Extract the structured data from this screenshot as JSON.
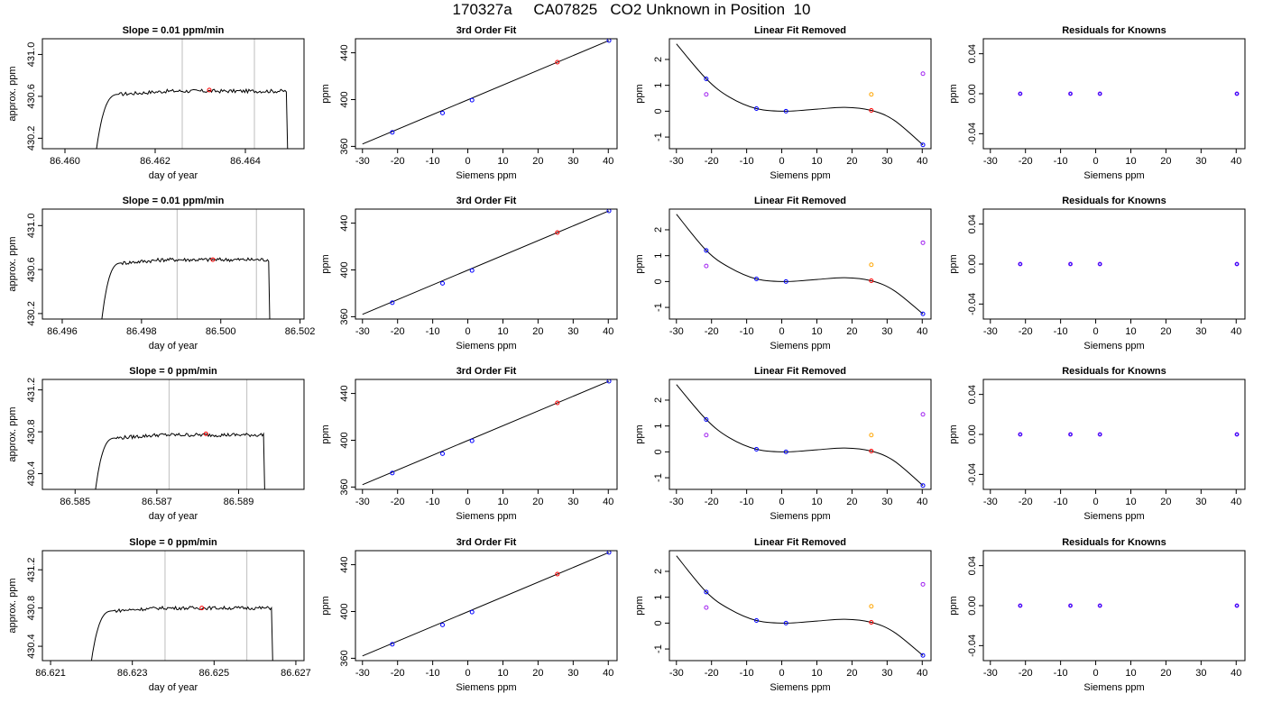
{
  "header": {
    "title": "170327a     CA07825   CO2 Unknown in Position  10"
  },
  "colors": {
    "frame": "#000000",
    "trace": "#000000",
    "window_line": "#c8c8c8",
    "unknown": "#ff0000",
    "known": "#0000ff",
    "reference_orange": "#ffa500",
    "reference_purple": "#a020f0"
  },
  "chart_data": [
    {
      "type": "line",
      "row": 0,
      "title": "Slope =  0.01  ppm/min",
      "xlabel": "day of year",
      "ylabel": "approx. ppm",
      "xlim": [
        86.4595,
        86.4653
      ],
      "ylim": [
        430.1,
        431.15
      ],
      "xticks": [
        86.46,
        86.462,
        86.464
      ],
      "xtick_labels": [
        "86.460",
        "86.462",
        "86.464"
      ],
      "yticks": [
        430.2,
        430.6,
        431.0
      ],
      "ytick_labels": [
        "430.2",
        "430.6",
        "431.0"
      ],
      "window": [
        86.4626,
        86.4642
      ],
      "mean_point": [
        86.4632,
        430.66
      ],
      "trace_start": 86.4607,
      "trace_end": 86.465,
      "plateau": 430.65,
      "floor": 430.1
    },
    {
      "type": "line",
      "row": 1,
      "title": "Slope =  0.01  ppm/min",
      "xlabel": "day of year",
      "ylabel": "approx. ppm",
      "xlim": [
        86.4955,
        86.5021
      ],
      "ylim": [
        430.15,
        431.15
      ],
      "xticks": [
        86.496,
        86.498,
        86.5,
        86.502
      ],
      "xtick_labels": [
        "86.496",
        "86.498",
        "86.500",
        "86.502"
      ],
      "yticks": [
        430.2,
        430.6,
        431.0
      ],
      "ytick_labels": [
        "430.2",
        "430.6",
        "431.0"
      ],
      "window": [
        86.4989,
        86.5009
      ],
      "mean_point": [
        86.4998,
        430.69
      ],
      "trace_start": 86.497,
      "trace_end": 86.5013,
      "plateau": 430.69,
      "floor": 430.15
    },
    {
      "type": "line",
      "row": 2,
      "title": "Slope =  0  ppm/min",
      "xlabel": "day of year",
      "ylabel": "approx. ppm",
      "xlim": [
        86.5842,
        86.5906
      ],
      "ylim": [
        430.25,
        431.3
      ],
      "xticks": [
        86.585,
        86.587,
        86.589
      ],
      "xtick_labels": [
        "86.585",
        "86.587",
        "86.589"
      ],
      "yticks": [
        430.4,
        430.8,
        431.2
      ],
      "ytick_labels": [
        "430.4",
        "430.8",
        "431.2"
      ],
      "window": [
        86.5873,
        86.5892
      ],
      "mean_point": [
        86.5882,
        430.78
      ],
      "trace_start": 86.5855,
      "trace_end": 86.5897,
      "plateau": 430.77,
      "floor": 430.25
    },
    {
      "type": "line",
      "row": 3,
      "title": "Slope =  0  ppm/min",
      "xlabel": "day of year",
      "ylabel": "approx. ppm",
      "xlim": [
        86.6208,
        86.6272
      ],
      "ylim": [
        430.25,
        431.4
      ],
      "xticks": [
        86.621,
        86.623,
        86.625,
        86.627
      ],
      "xtick_labels": [
        "86.621",
        "86.623",
        "86.625",
        "86.627"
      ],
      "yticks": [
        430.4,
        430.8,
        431.2
      ],
      "ytick_labels": [
        "430.4",
        "430.8",
        "431.2"
      ],
      "window": [
        86.6238,
        86.6258
      ],
      "mean_point": [
        86.6247,
        430.8
      ],
      "trace_start": 86.622,
      "trace_end": 86.6265,
      "plateau": 430.8,
      "floor": 430.25
    },
    {
      "type": "scatter",
      "row": 0,
      "title": "3rd Order Fit",
      "xlabel": "Siemens ppm",
      "ylabel": "ppm",
      "xlim": [
        -32,
        42.5
      ],
      "ylim": [
        358,
        452
      ],
      "xticks": [
        -30,
        -20,
        -10,
        0,
        10,
        20,
        30,
        40
      ],
      "yticks": [
        360,
        400,
        440
      ],
      "points": [
        [
          -21.5,
          372,
          "known"
        ],
        [
          -7.2,
          388.5,
          "known"
        ],
        [
          1.2,
          399.5,
          "known"
        ],
        [
          25.5,
          432,
          "unknown"
        ],
        [
          40.2,
          450.5,
          "known"
        ]
      ],
      "fit_line": [
        [
          -30,
          362
        ],
        [
          40.2,
          450.5
        ]
      ]
    },
    {
      "type": "scatter",
      "row": 1,
      "title": "3rd Order Fit",
      "xlabel": "Siemens ppm",
      "ylabel": "ppm",
      "xlim": [
        -32,
        42.5
      ],
      "ylim": [
        358,
        452
      ],
      "xticks": [
        -30,
        -20,
        -10,
        0,
        10,
        20,
        30,
        40
      ],
      "yticks": [
        360,
        400,
        440
      ],
      "points": [
        [
          -21.5,
          372,
          "known"
        ],
        [
          -7.2,
          388.5,
          "known"
        ],
        [
          1.2,
          399.5,
          "known"
        ],
        [
          25.5,
          432,
          "unknown"
        ],
        [
          40.2,
          450.5,
          "known"
        ]
      ],
      "fit_line": [
        [
          -30,
          362
        ],
        [
          40.2,
          450.5
        ]
      ]
    },
    {
      "type": "scatter",
      "row": 2,
      "title": "3rd Order Fit",
      "xlabel": "Siemens ppm",
      "ylabel": "ppm",
      "xlim": [
        -32,
        42.5
      ],
      "ylim": [
        358,
        452
      ],
      "xticks": [
        -30,
        -20,
        -10,
        0,
        10,
        20,
        30,
        40
      ],
      "yticks": [
        360,
        400,
        440
      ],
      "points": [
        [
          -21.5,
          372,
          "known"
        ],
        [
          -7.2,
          388.5,
          "known"
        ],
        [
          1.2,
          399.5,
          "known"
        ],
        [
          25.5,
          432,
          "unknown"
        ],
        [
          40.2,
          450.5,
          "known"
        ]
      ],
      "fit_line": [
        [
          -30,
          362
        ],
        [
          40.2,
          450.5
        ]
      ]
    },
    {
      "type": "scatter",
      "row": 3,
      "title": "3rd Order Fit",
      "xlabel": "Siemens ppm",
      "ylabel": "ppm",
      "xlim": [
        -32,
        42.5
      ],
      "ylim": [
        358,
        452
      ],
      "xticks": [
        -30,
        -20,
        -10,
        0,
        10,
        20,
        30,
        40
      ],
      "yticks": [
        360,
        400,
        440
      ],
      "points": [
        [
          -21.5,
          372,
          "known"
        ],
        [
          -7.2,
          388.5,
          "known"
        ],
        [
          1.2,
          399.5,
          "known"
        ],
        [
          25.5,
          432,
          "unknown"
        ],
        [
          40.2,
          450.5,
          "known"
        ]
      ],
      "fit_line": [
        [
          -30,
          362
        ],
        [
          40.2,
          450.5
        ]
      ]
    },
    {
      "type": "scatter",
      "row": 0,
      "title": "Linear Fit Removed",
      "xlabel": "Siemens ppm",
      "ylabel": "ppm",
      "xlim": [
        -32,
        42.5
      ],
      "ylim": [
        -1.45,
        2.8
      ],
      "xticks": [
        -30,
        -20,
        -10,
        0,
        10,
        20,
        30,
        40
      ],
      "yticks": [
        -1,
        0,
        1,
        2
      ],
      "curve_points": [
        [
          -30,
          2.6
        ],
        [
          -21.5,
          1.25
        ],
        [
          -15,
          0.55
        ],
        [
          -7.2,
          0.1
        ],
        [
          1.2,
          0.0
        ],
        [
          10,
          0.08
        ],
        [
          18,
          0.15
        ],
        [
          25.5,
          0.03
        ],
        [
          32,
          -0.35
        ],
        [
          40.2,
          -1.3
        ]
      ],
      "points": [
        [
          -21.5,
          1.25,
          "known"
        ],
        [
          -7.2,
          0.1,
          "known"
        ],
        [
          1.2,
          0.0,
          "known"
        ],
        [
          25.5,
          0.03,
          "unknown"
        ],
        [
          40.2,
          -1.3,
          "known"
        ],
        [
          -21.5,
          0.65,
          "reference_purple"
        ],
        [
          25.5,
          0.65,
          "reference_orange"
        ],
        [
          40.2,
          1.45,
          "reference_purple"
        ]
      ]
    },
    {
      "type": "scatter",
      "row": 1,
      "title": "Linear Fit Removed",
      "xlabel": "Siemens ppm",
      "ylabel": "ppm",
      "xlim": [
        -32,
        42.5
      ],
      "ylim": [
        -1.45,
        2.8
      ],
      "xticks": [
        -30,
        -20,
        -10,
        0,
        10,
        20,
        30,
        40
      ],
      "yticks": [
        -1,
        0,
        1,
        2
      ],
      "curve_points": [
        [
          -30,
          2.6
        ],
        [
          -21.5,
          1.2
        ],
        [
          -15,
          0.55
        ],
        [
          -7.2,
          0.1
        ],
        [
          1.2,
          0.0
        ],
        [
          10,
          0.08
        ],
        [
          18,
          0.15
        ],
        [
          25.5,
          0.03
        ],
        [
          32,
          -0.35
        ],
        [
          40.2,
          -1.25
        ]
      ],
      "points": [
        [
          -21.5,
          1.2,
          "known"
        ],
        [
          -7.2,
          0.1,
          "known"
        ],
        [
          1.2,
          0.0,
          "known"
        ],
        [
          25.5,
          0.03,
          "unknown"
        ],
        [
          40.2,
          -1.25,
          "known"
        ],
        [
          -21.5,
          0.6,
          "reference_purple"
        ],
        [
          25.5,
          0.65,
          "reference_orange"
        ],
        [
          40.2,
          1.5,
          "reference_purple"
        ]
      ]
    },
    {
      "type": "scatter",
      "row": 2,
      "title": "Linear Fit Removed",
      "xlabel": "Siemens ppm",
      "ylabel": "ppm",
      "xlim": [
        -32,
        42.5
      ],
      "ylim": [
        -1.45,
        2.8
      ],
      "xticks": [
        -30,
        -20,
        -10,
        0,
        10,
        20,
        30,
        40
      ],
      "yticks": [
        -1,
        0,
        1,
        2
      ],
      "curve_points": [
        [
          -30,
          2.6
        ],
        [
          -21.5,
          1.25
        ],
        [
          -15,
          0.55
        ],
        [
          -7.2,
          0.1
        ],
        [
          1.2,
          0.0
        ],
        [
          10,
          0.08
        ],
        [
          18,
          0.15
        ],
        [
          25.5,
          0.03
        ],
        [
          32,
          -0.35
        ],
        [
          40.2,
          -1.3
        ]
      ],
      "points": [
        [
          -21.5,
          1.25,
          "known"
        ],
        [
          -7.2,
          0.1,
          "known"
        ],
        [
          1.2,
          0.0,
          "known"
        ],
        [
          25.5,
          0.03,
          "unknown"
        ],
        [
          40.2,
          -1.3,
          "known"
        ],
        [
          -21.5,
          0.65,
          "reference_purple"
        ],
        [
          25.5,
          0.65,
          "reference_orange"
        ],
        [
          40.2,
          1.45,
          "reference_purple"
        ]
      ]
    },
    {
      "type": "scatter",
      "row": 3,
      "title": "Linear Fit Removed",
      "xlabel": "Siemens ppm",
      "ylabel": "ppm",
      "xlim": [
        -32,
        42.5
      ],
      "ylim": [
        -1.45,
        2.8
      ],
      "xticks": [
        -30,
        -20,
        -10,
        0,
        10,
        20,
        30,
        40
      ],
      "yticks": [
        -1,
        0,
        1,
        2
      ],
      "curve_points": [
        [
          -30,
          2.6
        ],
        [
          -21.5,
          1.2
        ],
        [
          -15,
          0.55
        ],
        [
          -7.2,
          0.1
        ],
        [
          1.2,
          0.0
        ],
        [
          10,
          0.08
        ],
        [
          18,
          0.15
        ],
        [
          25.5,
          0.03
        ],
        [
          32,
          -0.35
        ],
        [
          40.2,
          -1.25
        ]
      ],
      "points": [
        [
          -21.5,
          1.2,
          "known"
        ],
        [
          -7.2,
          0.1,
          "known"
        ],
        [
          1.2,
          0.0,
          "known"
        ],
        [
          25.5,
          0.03,
          "unknown"
        ],
        [
          40.2,
          -1.25,
          "known"
        ],
        [
          -21.5,
          0.6,
          "reference_purple"
        ],
        [
          25.5,
          0.65,
          "reference_orange"
        ],
        [
          40.2,
          1.5,
          "reference_purple"
        ]
      ]
    },
    {
      "type": "scatter",
      "row": 0,
      "title": "Residuals for Knowns",
      "xlabel": "Siemens ppm",
      "ylabel": "ppm",
      "xlim": [
        -32,
        42.5
      ],
      "ylim": [
        -0.055,
        0.055
      ],
      "xticks": [
        -30,
        -20,
        -10,
        0,
        10,
        20,
        30,
        40
      ],
      "yticks": [
        -0.04,
        0.0,
        0.04
      ],
      "ytick_labels": [
        "-0.04",
        "0.00",
        "0.04"
      ],
      "points": [
        [
          -21.5,
          0,
          "residual"
        ],
        [
          -7.2,
          0,
          "residual"
        ],
        [
          1.2,
          0,
          "residual"
        ],
        [
          40.2,
          0,
          "residual"
        ]
      ]
    },
    {
      "type": "scatter",
      "row": 1,
      "title": "Residuals for Knowns",
      "xlabel": "Siemens ppm",
      "ylabel": "ppm",
      "xlim": [
        -32,
        42.5
      ],
      "ylim": [
        -0.055,
        0.055
      ],
      "xticks": [
        -30,
        -20,
        -10,
        0,
        10,
        20,
        30,
        40
      ],
      "yticks": [
        -0.04,
        0.0,
        0.04
      ],
      "ytick_labels": [
        "-0.04",
        "0.00",
        "0.04"
      ],
      "points": [
        [
          -21.5,
          0,
          "residual"
        ],
        [
          -7.2,
          0,
          "residual"
        ],
        [
          1.2,
          0,
          "residual"
        ],
        [
          40.2,
          0,
          "residual"
        ]
      ]
    },
    {
      "type": "scatter",
      "row": 2,
      "title": "Residuals for Knowns",
      "xlabel": "Siemens ppm",
      "ylabel": "ppm",
      "xlim": [
        -32,
        42.5
      ],
      "ylim": [
        -0.055,
        0.055
      ],
      "xticks": [
        -30,
        -20,
        -10,
        0,
        10,
        20,
        30,
        40
      ],
      "yticks": [
        -0.04,
        0.0,
        0.04
      ],
      "ytick_labels": [
        "-0.04",
        "0.00",
        "0.04"
      ],
      "points": [
        [
          -21.5,
          0,
          "residual"
        ],
        [
          -7.2,
          0,
          "residual"
        ],
        [
          1.2,
          0,
          "residual"
        ],
        [
          40.2,
          0,
          "residual"
        ]
      ]
    },
    {
      "type": "scatter",
      "row": 3,
      "title": "Residuals for Knowns",
      "xlabel": "Siemens ppm",
      "ylabel": "ppm",
      "xlim": [
        -32,
        42.5
      ],
      "ylim": [
        -0.055,
        0.055
      ],
      "xticks": [
        -30,
        -20,
        -10,
        0,
        10,
        20,
        30,
        40
      ],
      "yticks": [
        -0.04,
        0.0,
        0.04
      ],
      "ytick_labels": [
        "-0.04",
        "0.00",
        "0.04"
      ],
      "points": [
        [
          -21.5,
          0,
          "residual"
        ],
        [
          -7.2,
          0,
          "residual"
        ],
        [
          1.2,
          0,
          "residual"
        ],
        [
          40.2,
          0,
          "residual"
        ]
      ]
    }
  ]
}
